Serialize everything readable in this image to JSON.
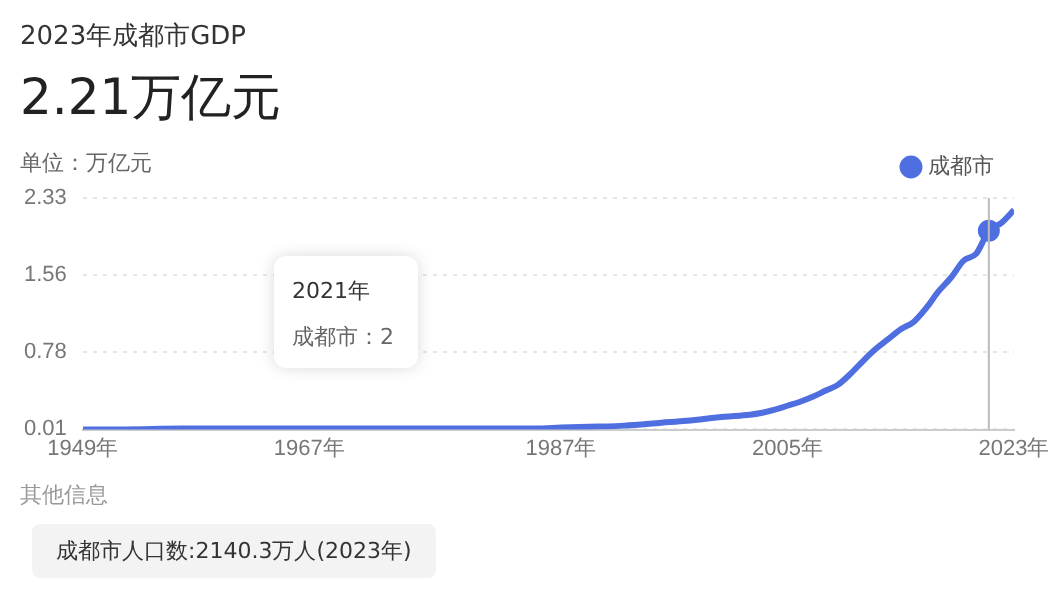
{
  "chart_data": {
    "type": "line",
    "title": "2023年成都市GDP",
    "subtitle": "2.21万亿元",
    "ylabel": "单位：万亿元",
    "x": [
      1949,
      1952,
      1957,
      1962,
      1965,
      1970,
      1975,
      1978,
      1980,
      1985,
      1987,
      1990,
      1992,
      1995,
      1997,
      2000,
      2002,
      2003,
      2004,
      2005,
      2006,
      2007,
      2008,
      2009,
      2010,
      2011,
      2012,
      2013,
      2014,
      2015,
      2016,
      2017,
      2018,
      2019,
      2020,
      2021,
      2022,
      2023
    ],
    "series": [
      {
        "name": "成都市",
        "color": "#4f6ee0",
        "values": [
          0,
          0,
          0.01,
          0.01,
          0.01,
          0.01,
          0.01,
          0.01,
          0.01,
          0.01,
          0.02,
          0.03,
          0.04,
          0.07,
          0.09,
          0.13,
          0.15,
          0.17,
          0.2,
          0.24,
          0.28,
          0.33,
          0.39,
          0.45,
          0.56,
          0.69,
          0.81,
          0.91,
          1.01,
          1.08,
          1.22,
          1.39,
          1.53,
          1.7,
          1.77,
          2,
          2.08,
          2.21
        ]
      }
    ],
    "xlim": [
      1949,
      2023
    ],
    "xticks": [
      {
        "value": 1949,
        "label": "1949年"
      },
      {
        "value": 1967,
        "label": "1967年"
      },
      {
        "value": 1987,
        "label": "1987年"
      },
      {
        "value": 2005,
        "label": "2005年"
      },
      {
        "value": 2023,
        "label": "2023年"
      }
    ],
    "ylim": [
      0,
      2.33
    ],
    "yticks": [
      0.01,
      0.78,
      1.56,
      2.33
    ],
    "grid": "y",
    "legend": "top right",
    "marker": "none",
    "line_style": "solid",
    "ref_lines": [
      {
        "axis": "x",
        "value": 2021,
        "color": "#bbbbbb"
      }
    ],
    "annotations": [
      "2021年",
      "成都市：2",
      "其他信息",
      "成都市人口数:2140.3万人(2023年)"
    ]
  }
}
